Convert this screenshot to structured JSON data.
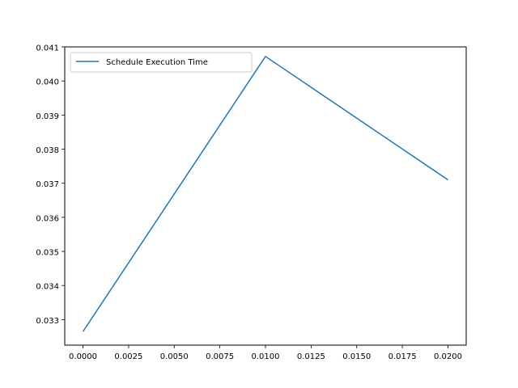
{
  "chart_data": {
    "type": "line",
    "title": "",
    "xlabel": "",
    "ylabel": "",
    "xlim": [
      -0.001,
      0.021
    ],
    "ylim": [
      0.03225,
      0.041
    ],
    "x_ticks": [
      0.0,
      0.0025,
      0.005,
      0.0075,
      0.01,
      0.0125,
      0.015,
      0.0175,
      0.02
    ],
    "x_tick_labels": [
      "0.0000",
      "0.0025",
      "0.0050",
      "0.0075",
      "0.0100",
      "0.0125",
      "0.0150",
      "0.0175",
      "0.0200"
    ],
    "y_ticks": [
      0.033,
      0.034,
      0.035,
      0.036,
      0.037,
      0.038,
      0.039,
      0.04,
      0.041
    ],
    "y_tick_labels": [
      "0.033",
      "0.034",
      "0.035",
      "0.036",
      "0.037",
      "0.038",
      "0.039",
      "0.040",
      "0.041"
    ],
    "grid": false,
    "legend_position": "top-left",
    "series": [
      {
        "name": "Schedule Execution Time",
        "color": "#1f77b4",
        "x": [
          0.0,
          0.01,
          0.02
        ],
        "y": [
          0.03265,
          0.04072,
          0.0371
        ]
      }
    ]
  }
}
